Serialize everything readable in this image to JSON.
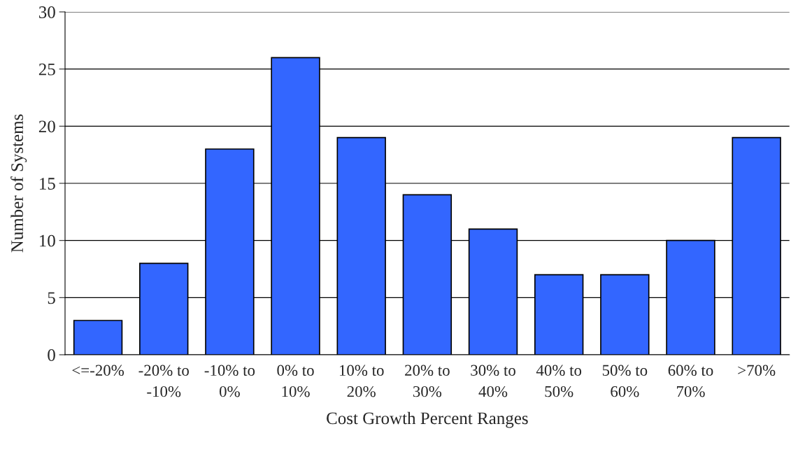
{
  "chart_data": {
    "type": "bar",
    "xlabel": "Cost Growth Percent Ranges",
    "ylabel": "Number of Systems",
    "categories": [
      "<=-20%",
      "-20% to\n-10%",
      "-10% to\n0%",
      "0% to\n10%",
      "10% to\n20%",
      "20% to\n30%",
      "30% to\n40%",
      "40% to\n50%",
      "50% to\n60%",
      "60% to\n70%",
      ">70%"
    ],
    "values": [
      3,
      8,
      18,
      26,
      19,
      14,
      11,
      7,
      7,
      10,
      19
    ],
    "color": "#3366ff",
    "ylim": [
      0,
      30
    ],
    "yticks": [
      0,
      5,
      10,
      15,
      20,
      25,
      30
    ],
    "grid": "y"
  }
}
